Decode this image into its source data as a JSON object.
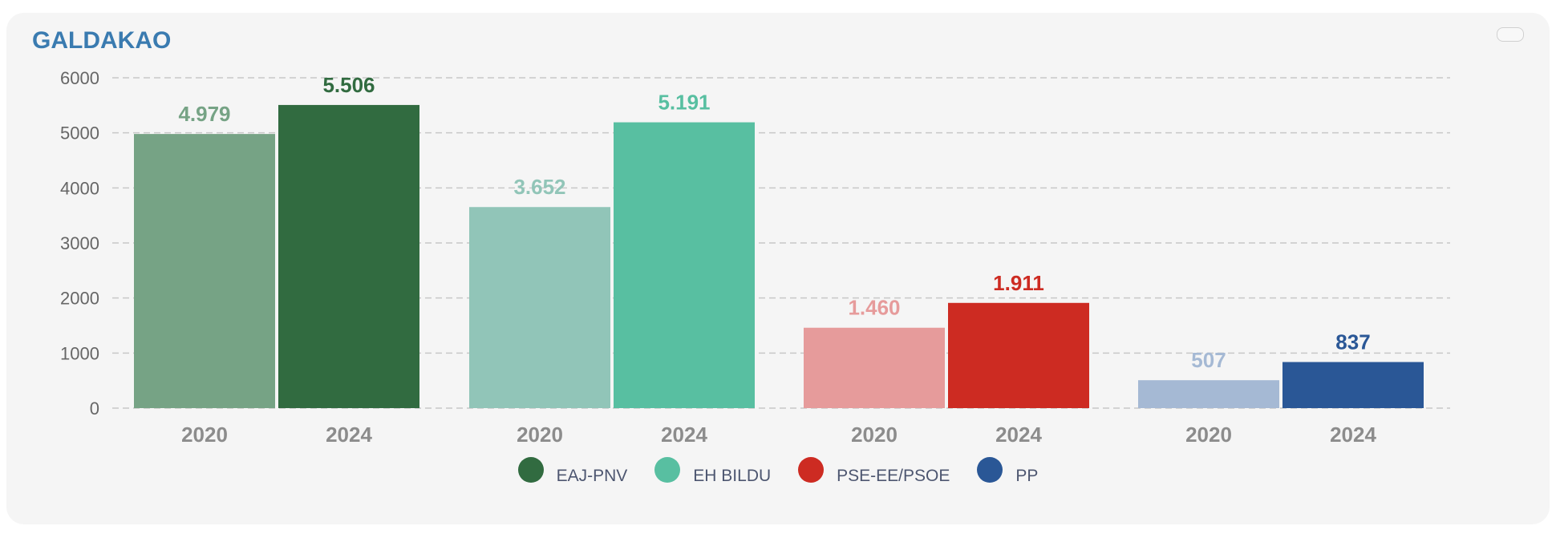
{
  "title": "GALDAKAO",
  "colors": {
    "background": "#f5f5f5",
    "title": "#3a7bb0",
    "grid": "#c8c8c8"
  },
  "chart_data": {
    "type": "bar",
    "ylim": [
      0,
      6000
    ],
    "yticks": [
      "0",
      "1000",
      "2000",
      "3000",
      "4000",
      "5000",
      "6000"
    ],
    "grid": true,
    "legend_position": "bottom",
    "groups": [
      {
        "name": "EAJ-PNV",
        "color": "#316b40",
        "light_color": "#76a385",
        "bars": [
          {
            "year": "2020",
            "value": 4979,
            "label": "4.979"
          },
          {
            "year": "2024",
            "value": 5506,
            "label": "5.506"
          }
        ]
      },
      {
        "name": "EH BILDU",
        "color": "#58bfa1",
        "light_color": "#91c5b8",
        "bars": [
          {
            "year": "2020",
            "value": 3652,
            "label": "3.652"
          },
          {
            "year": "2024",
            "value": 5191,
            "label": "5.191"
          }
        ]
      },
      {
        "name": "PSE-EE/PSOE",
        "color": "#cd2b22",
        "light_color": "#e69b9b",
        "bars": [
          {
            "year": "2020",
            "value": 1460,
            "label": "1.460"
          },
          {
            "year": "2024",
            "value": 1911,
            "label": "1.911"
          }
        ]
      },
      {
        "name": "PP",
        "color": "#2a5796",
        "light_color": "#a5b9d4",
        "bars": [
          {
            "year": "2020",
            "value": 507,
            "label": "507"
          },
          {
            "year": "2024",
            "value": 837,
            "label": "837"
          }
        ]
      }
    ]
  }
}
